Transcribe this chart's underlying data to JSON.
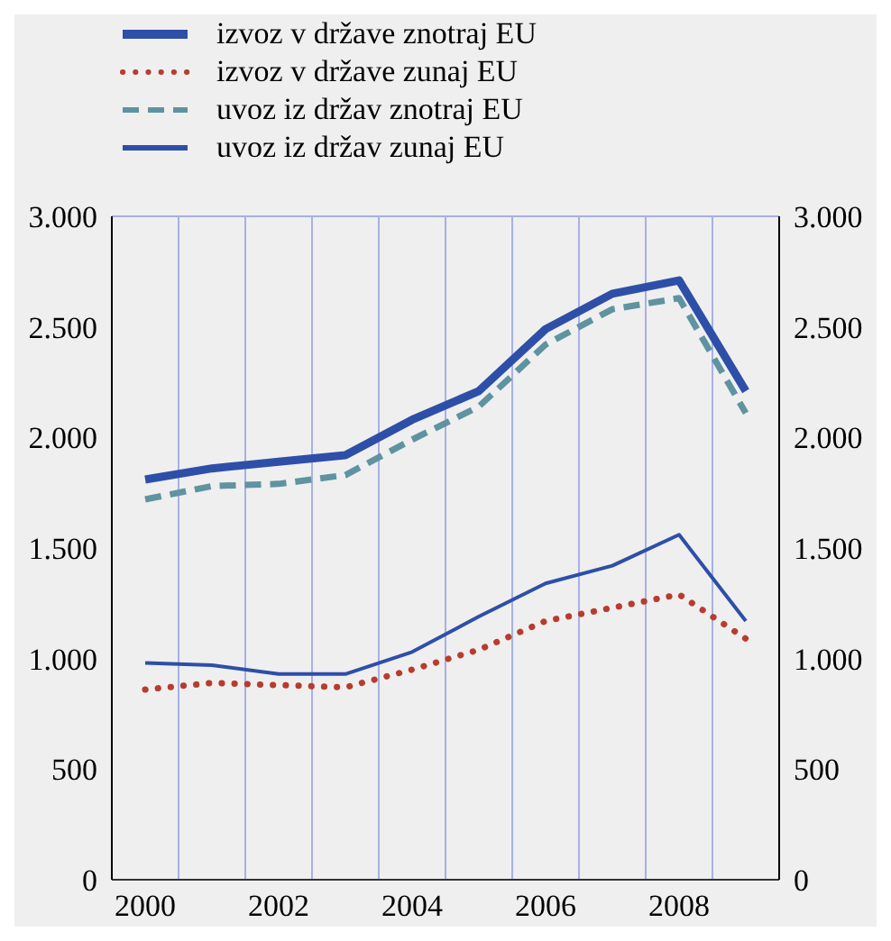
{
  "chart_data": {
    "type": "line",
    "categories": [
      "2000",
      null,
      "2002",
      null,
      "2004",
      null,
      "2006",
      null,
      "2008",
      null
    ],
    "series": [
      {
        "name": "izvoz v države znotraj EU",
        "color": "#2e4fa8",
        "line_style": "solid",
        "values": [
          1810,
          1860,
          1890,
          1920,
          2080,
          2210,
          2490,
          2650,
          2710,
          2210
        ]
      },
      {
        "name": "izvoz v države zunaj EU",
        "color": "#b83c2e",
        "line_style": "dotted",
        "values": [
          860,
          890,
          880,
          870,
          950,
          1040,
          1170,
          1230,
          1290,
          1090
        ]
      },
      {
        "name": "uvoz iz držav znotraj EU",
        "color": "#5f93a0",
        "line_style": "dashed",
        "values": [
          1720,
          1780,
          1790,
          1830,
          1990,
          2140,
          2420,
          2580,
          2630,
          2110
        ]
      },
      {
        "name": "uvoz iz držav zunaj EU",
        "color": "#2e4fa8",
        "line_style": "solid",
        "values": [
          980,
          970,
          930,
          930,
          1030,
          1190,
          1340,
          1420,
          1560,
          1170
        ]
      }
    ],
    "ylim": [
      0,
      3000
    ],
    "yticks": [
      0,
      {
        "value": 500,
        "label": "500"
      },
      {
        "value": 1000,
        "label": "1.000"
      },
      {
        "value": 1500,
        "label": "1.500"
      },
      {
        "value": 2000,
        "label": "2.000"
      },
      {
        "value": 2500,
        "label": "2.500"
      },
      {
        "value": 3000,
        "label": "3.000"
      }
    ],
    "y2lim": [
      0,
      3000
    ],
    "y2ticks": [
      0,
      {
        "value": 500,
        "label": "500"
      },
      {
        "value": 1000,
        "label": "1.000"
      },
      {
        "value": 1500,
        "label": "1.500"
      },
      {
        "value": 2000,
        "label": "2.000"
      },
      {
        "value": 2500,
        "label": "2.500"
      },
      {
        "value": 3000,
        "label": "3.000"
      }
    ],
    "grid": true,
    "legend": "top",
    "marker": "none"
  }
}
